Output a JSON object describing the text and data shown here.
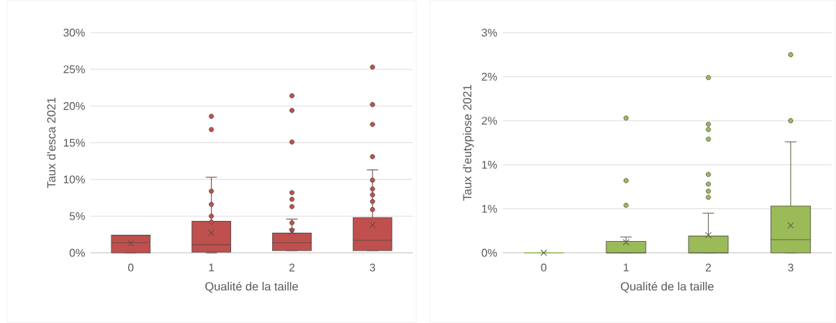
{
  "chart_data": [
    {
      "type": "box",
      "xlabel": "Qualité de la taille",
      "ylabel": "Taux d'esca 2021",
      "categories": [
        "0",
        "1",
        "2",
        "3"
      ],
      "color": "#c0504d",
      "grid": "y",
      "ylim": [
        0,
        30
      ],
      "yticks": [
        {
          "value": 0,
          "label": "0%"
        },
        {
          "value": 5,
          "label": "5%"
        },
        {
          "value": 10,
          "label": "10%"
        },
        {
          "value": 15,
          "label": "15%"
        },
        {
          "value": 20,
          "label": "20%"
        },
        {
          "value": 25,
          "label": "25%"
        },
        {
          "value": 30,
          "label": "30%"
        }
      ],
      "boxes": [
        {
          "low": 0,
          "q1": 0,
          "median": 1.4,
          "q3": 2.4,
          "high": 2.4,
          "mean": 1.3
        },
        {
          "low": 0,
          "q1": 0.1,
          "median": 1.1,
          "q3": 4.3,
          "high": 10.3,
          "mean": 2.7,
          "outliers": [
            18.6,
            16.8,
            8.4,
            6.6,
            5.0,
            4.2
          ]
        },
        {
          "low": 0.3,
          "q1": 0.3,
          "median": 1.4,
          "q3": 2.7,
          "high": 4.6,
          "mean": 2.9,
          "outliers": [
            21.4,
            19.4,
            15.1,
            8.2,
            7.3,
            6.3,
            4.1,
            3.1
          ]
        },
        {
          "low": 0.3,
          "q1": 0.3,
          "median": 1.7,
          "q3": 4.8,
          "high": 11.3,
          "mean": 3.8,
          "outliers": [
            25.3,
            20.2,
            17.5,
            13.1,
            9.9,
            8.7,
            7.9,
            7.0,
            5.9
          ]
        }
      ]
    },
    {
      "type": "box",
      "xlabel": "Qualité de la taille",
      "ylabel": "Taux d'eutypiose 2021",
      "categories": [
        "0",
        "1",
        "2",
        "3"
      ],
      "color": "#9bbb59",
      "grid": "y",
      "ylim": [
        0,
        2.5
      ],
      "yticks": [
        {
          "value": 0,
          "label": "0%"
        },
        {
          "value": 0.5,
          "label": "1%"
        },
        {
          "value": 1,
          "label": "1%"
        },
        {
          "value": 1.5,
          "label": "2%"
        },
        {
          "value": 2,
          "label": "2%"
        },
        {
          "value": 2.5,
          "label": "3%"
        }
      ],
      "boxes": [
        {
          "low": 0,
          "q1": 0,
          "median": 0,
          "q3": 0,
          "high": 0,
          "mean": 0
        },
        {
          "low": 0,
          "q1": 0,
          "median": 0,
          "q3": 0.13,
          "high": 0.18,
          "mean": 0.12,
          "outliers": [
            1.53,
            0.82,
            0.54
          ]
        },
        {
          "low": 0,
          "q1": 0,
          "median": 0,
          "q3": 0.19,
          "high": 0.45,
          "mean": 0.2,
          "outliers": [
            1.99,
            1.46,
            1.4,
            1.29,
            0.89,
            0.78,
            0.7,
            0.63
          ]
        },
        {
          "low": 0,
          "q1": 0,
          "median": 0.15,
          "q3": 0.53,
          "high": 1.26,
          "mean": 0.31,
          "outliers": [
            2.25,
            1.5
          ]
        }
      ]
    }
  ]
}
